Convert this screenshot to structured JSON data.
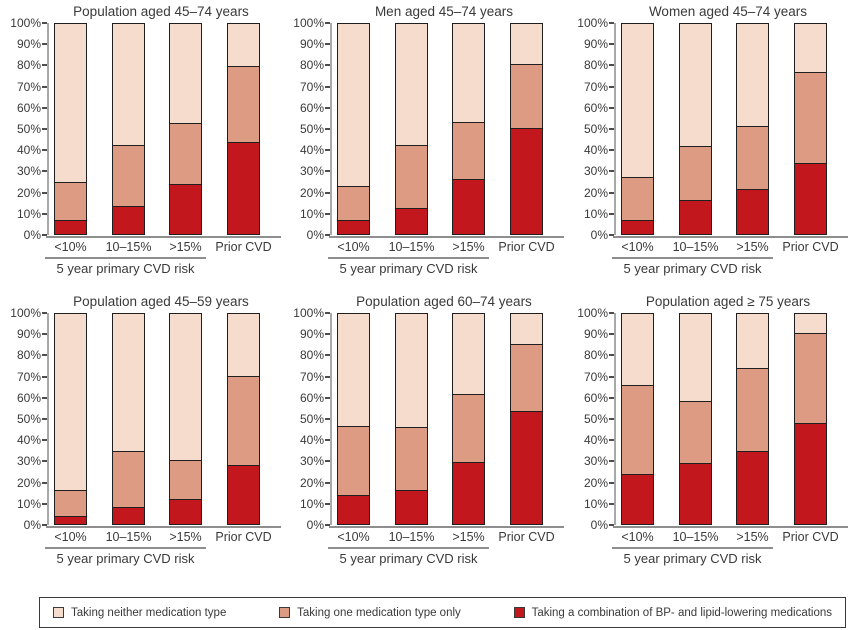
{
  "figure": {
    "text_color": "#3a3a3a",
    "axis_color": "#8e8e8e",
    "bar_border_color": "#1f1f1f"
  },
  "legend": {
    "position": "bottom",
    "items": [
      {
        "key": "neither",
        "label": "Taking neither medication type",
        "color": "#f5dccd"
      },
      {
        "key": "one_only",
        "label": "Taking one medication type only",
        "color": "#dd9b84"
      },
      {
        "key": "combination",
        "label": "Taking a combination of BP- and lipid-lowering medications",
        "color": "#c2181d"
      }
    ]
  },
  "chart_data": {
    "type": "bar",
    "variant": "stacked-percent",
    "grid": false,
    "ylim": [
      0,
      100
    ],
    "y_ticks": [
      "0%",
      "10%",
      "20%",
      "30%",
      "40%",
      "50%",
      "60%",
      "70%",
      "80%",
      "90%",
      "100%"
    ],
    "categories": [
      "<10%",
      "10–15%",
      ">15%",
      "Prior CVD"
    ],
    "group_axis_label": "5 year primary CVD risk",
    "series_order_bottom_to_top": [
      "combination",
      "one_only",
      "neither"
    ],
    "charts": [
      {
        "title": "Population aged 45–74 years",
        "series": {
          "combination": [
            6.5,
            13.5,
            24,
            44
          ],
          "one_only": [
            18.5,
            29,
            29,
            36
          ],
          "neither": [
            75,
            57.5,
            47,
            20
          ]
        }
      },
      {
        "title": "Men aged 45–74 years",
        "series": {
          "combination": [
            6.5,
            12.5,
            26,
            50.5
          ],
          "one_only": [
            16.5,
            30,
            27.5,
            30.5
          ],
          "neither": [
            77,
            57.5,
            46.5,
            19
          ]
        }
      },
      {
        "title": "Women aged 45–74 years",
        "series": {
          "combination": [
            6.5,
            16,
            21.5,
            34
          ],
          "one_only": [
            20.5,
            26,
            30,
            43
          ],
          "neither": [
            73,
            58,
            48.5,
            23
          ]
        }
      },
      {
        "title": "Population aged 45–59 years",
        "series": {
          "combination": [
            4,
            8,
            12,
            28
          ],
          "one_only": [
            12,
            27,
            18.5,
            42.5
          ],
          "neither": [
            84,
            65,
            69.5,
            29.5
          ]
        }
      },
      {
        "title": "Population aged 60–74 years",
        "series": {
          "combination": [
            14,
            16,
            29.5,
            54
          ],
          "one_only": [
            32.5,
            30,
            32.5,
            31.5
          ],
          "neither": [
            53.5,
            54,
            38,
            14.5
          ]
        }
      },
      {
        "title": "Population aged ≥ 75 years",
        "series": {
          "combination": [
            24,
            29,
            35,
            48
          ],
          "one_only": [
            42,
            29.5,
            39.5,
            43
          ],
          "neither": [
            34,
            41.5,
            25.5,
            9
          ]
        }
      }
    ]
  }
}
